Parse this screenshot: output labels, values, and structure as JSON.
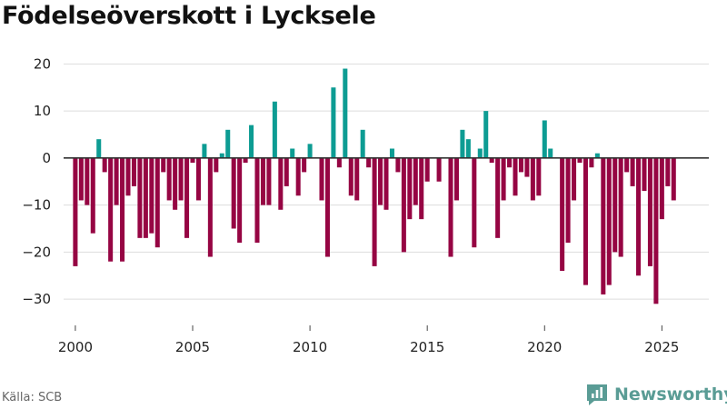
{
  "title": "Födelseöverskott i Lycksele",
  "source": "Källa: SCB",
  "brand": "Newsworthy",
  "colors": {
    "positive": "#0d9c93",
    "negative": "#960543",
    "brand": "#5a9c95",
    "grid": "#dddddd",
    "zero": "#333333"
  },
  "chart_data": {
    "type": "bar",
    "title": "Födelseöverskott i Lycksele",
    "xlabel": "",
    "ylabel": "",
    "ylim": [
      -35,
      22
    ],
    "xlim": [
      1999.5,
      2027.0
    ],
    "yticks": [
      20,
      10,
      0,
      -10,
      -20,
      -30
    ],
    "xticks": [
      2000,
      2005,
      2010,
      2015,
      2020,
      2025
    ],
    "start": 2000.0,
    "step": 0.25,
    "values": [
      -23,
      -9,
      -10,
      -16,
      4,
      -3,
      -22,
      -10,
      -22,
      -8,
      -6,
      -17,
      -17,
      -16,
      -19,
      -3,
      -9,
      -11,
      -9,
      -17,
      -1,
      -9,
      3,
      -21,
      -3,
      1,
      6,
      -15,
      -18,
      -1,
      7,
      -18,
      -10,
      -10,
      12,
      -11,
      -6,
      2,
      -8,
      -3,
      3,
      0,
      -9,
      -21,
      15,
      -2,
      19,
      -8,
      -9,
      6,
      -2,
      -23,
      -10,
      -11,
      2,
      -3,
      -20,
      -13,
      -10,
      -13,
      -5,
      0,
      -5,
      0,
      -21,
      -9,
      6,
      4,
      -19,
      2,
      10,
      -1,
      -17,
      -9,
      -2,
      -8,
      -3,
      -4,
      -9,
      -8,
      8,
      2,
      0,
      -24,
      -18,
      -9,
      -1,
      -27,
      -2,
      1,
      -29,
      -27,
      -20,
      -21,
      -3,
      -6,
      -25,
      -7,
      -23,
      -31,
      -13,
      -6,
      -9
    ]
  }
}
